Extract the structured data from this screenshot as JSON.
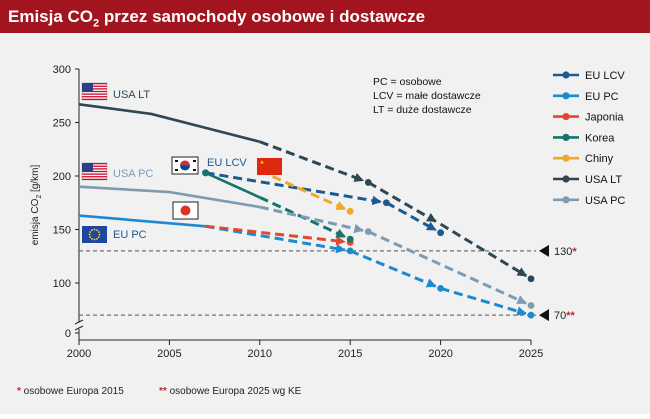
{
  "title": {
    "prefix": "Emisja CO",
    "sub": "2",
    "suffix": " przez samochody osobowe i dostawcze"
  },
  "chart_data": {
    "type": "line",
    "title": "Emisja CO2 przez samochody osobowe i dostawcze",
    "ylabel": "emisja CO2 [g/km]",
    "xlabel": "",
    "xlim": [
      2000,
      2025
    ],
    "ylim": [
      0,
      300
    ],
    "x_ticks": [
      2000,
      2005,
      2010,
      2015,
      2020,
      2025
    ],
    "y_ticks": [
      0,
      100,
      150,
      200,
      250,
      300
    ],
    "axis_break": true,
    "series": [
      {
        "name": "EU LCV",
        "color": "#1b5b94",
        "solid": [],
        "dashed": [
          [
            2007,
            203
          ],
          [
            2017,
            175
          ],
          [
            2020,
            147
          ]
        ],
        "markers": [
          [
            2007,
            203
          ],
          [
            2017,
            175
          ],
          [
            2020,
            147
          ]
        ]
      },
      {
        "name": "EU PC",
        "color": "#1b8ad0",
        "solid": [
          [
            2000,
            163
          ],
          [
            2007,
            153
          ]
        ],
        "dashed": [
          [
            2007,
            153
          ],
          [
            2015,
            130
          ],
          [
            2020,
            95
          ],
          [
            2025,
            70
          ]
        ],
        "markers": [
          [
            2015,
            130
          ],
          [
            2020,
            95
          ],
          [
            2025,
            70
          ]
        ]
      },
      {
        "name": "Japonia",
        "color": "#e2482b",
        "solid": [],
        "dashed": [
          [
            2007,
            153
          ],
          [
            2015,
            138
          ]
        ],
        "markers": [
          [
            2015,
            138
          ]
        ]
      },
      {
        "name": "Korea",
        "color": "#17736b",
        "solid": [
          [
            2007,
            203
          ],
          [
            2010,
            180
          ]
        ],
        "dashed": [
          [
            2010,
            180
          ],
          [
            2015,
            141
          ]
        ],
        "markers": [
          [
            2007,
            203
          ],
          [
            2015,
            141
          ]
        ]
      },
      {
        "name": "Chiny",
        "color": "#f3a726",
        "solid": [],
        "dashed": [
          [
            2010,
            205
          ],
          [
            2015,
            167
          ]
        ],
        "markers": [
          [
            2015,
            167
          ]
        ]
      },
      {
        "name": "USA LT",
        "color": "#2f4755",
        "solid": [
          [
            2000,
            267
          ],
          [
            2004,
            258
          ],
          [
            2010,
            232
          ]
        ],
        "dashed": [
          [
            2010,
            232
          ],
          [
            2016,
            194
          ],
          [
            2020,
            155
          ],
          [
            2025,
            104
          ]
        ],
        "markers": [
          [
            2016,
            194
          ],
          [
            2025,
            104
          ]
        ]
      },
      {
        "name": "USA PC",
        "color": "#7f9bb2",
        "solid": [
          [
            2000,
            190
          ],
          [
            2005,
            185
          ],
          [
            2010,
            171
          ]
        ],
        "dashed": [
          [
            2010,
            171
          ],
          [
            2016,
            148
          ],
          [
            2025,
            79
          ]
        ],
        "markers": [
          [
            2016,
            148
          ],
          [
            2025,
            79
          ]
        ]
      }
    ],
    "reference_lines": [
      {
        "y": 130,
        "label": "130",
        "mark": "*"
      },
      {
        "y": 70,
        "label": "70",
        "mark": "**"
      }
    ],
    "annotations": [
      {
        "text": "USA LT",
        "color": "#2f4755",
        "flag": "usa"
      },
      {
        "text": "USA PC",
        "color": "#7f9bb2",
        "flag": "usa"
      },
      {
        "text": "EU PC",
        "color": "#1b5b94",
        "flag": "eu"
      },
      {
        "text": "EU LCV",
        "color": "#1b5b94",
        "flag": "korea"
      }
    ],
    "definitions": [
      "PC = osobowe",
      "LCV = małe dostawcze",
      "LT = duże dostawcze"
    ],
    "legend_position": "right"
  },
  "footnotes": [
    {
      "mark": "*",
      "text": " osobowe Europa 2015"
    },
    {
      "mark": "**",
      "text": " osobowe Europa 2025 wg KE"
    }
  ],
  "colors": {
    "title_bg": "#a2151f",
    "accent_red": "#c0262d",
    "background": "#f1f1f1"
  }
}
